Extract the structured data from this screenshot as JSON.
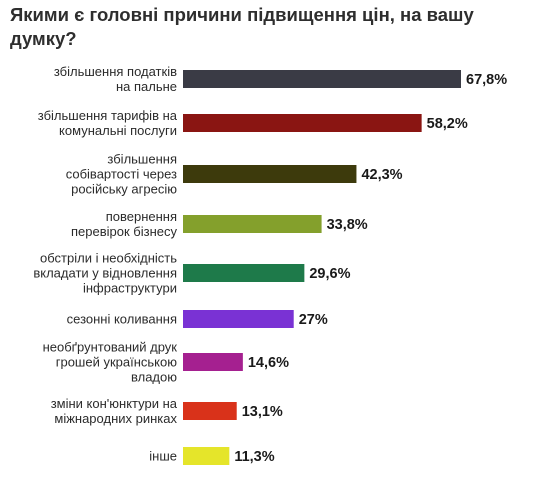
{
  "chart_data": {
    "type": "bar",
    "orientation": "horizontal",
    "title": "Якими є головні причини підвищення цін, на вашу думку?",
    "categories": [
      [
        "збільшення податків",
        "на пальне"
      ],
      [
        "збільшення тарифів на",
        "комунальні послуги"
      ],
      [
        "збільшення",
        "собівартості через",
        "російську агресію"
      ],
      [
        "повернення",
        "перевірок бізнесу"
      ],
      [
        "обстріли і необхідність",
        "вкладати у відновлення",
        "інфраструктури"
      ],
      [
        "сезонні коливання"
      ],
      [
        "необґрунтований друк",
        "грошей українською",
        "владою"
      ],
      [
        "зміни кон'юнктури на",
        "міжнародних ринках"
      ],
      [
        "інше"
      ]
    ],
    "values": [
      67.8,
      58.2,
      42.3,
      33.8,
      29.6,
      27,
      14.6,
      13.1,
      11.3
    ],
    "value_labels": [
      "67,8%",
      "58,2%",
      "42,3%",
      "33,8%",
      "29,6%",
      "27%",
      "14,6%",
      "13,1%",
      "11,3%"
    ],
    "colors": [
      "#3a3b45",
      "#8a1512",
      "#3d3a0c",
      "#84a02c",
      "#1e7a4a",
      "#7a32d4",
      "#a52090",
      "#d9321a",
      "#e5e52a"
    ],
    "xlim": [
      0,
      67.8
    ],
    "grid": false,
    "legend": "none"
  }
}
